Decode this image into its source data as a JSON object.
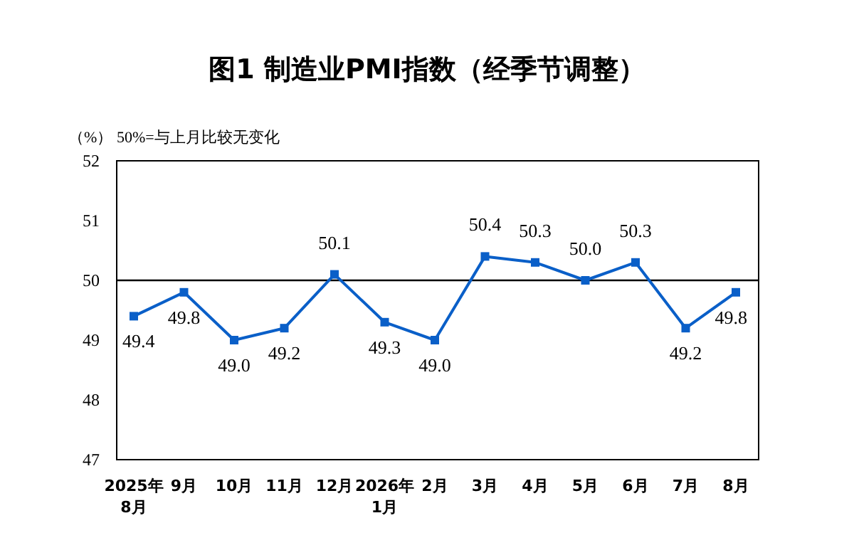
{
  "chart_data": {
    "type": "line",
    "title": "图1 制造业PMI指数（经季节调整）",
    "ylabel": "（%）",
    "annotations": [
      "50%=与上月比较无变化"
    ],
    "categories": [
      "2025年\n8月",
      "9月",
      "10月",
      "11月",
      "12月",
      "2026年\n1月",
      "2月",
      "3月",
      "4月",
      "5月",
      "6月",
      "7月",
      "8月"
    ],
    "series": [
      {
        "color": "#0a5fc8",
        "values": [
          49.4,
          49.8,
          49.0,
          49.2,
          50.1,
          49.3,
          49.0,
          50.4,
          50.3,
          50.0,
          50.3,
          49.2,
          49.8
        ]
      }
    ],
    "value_labels": [
      "49.4",
      "49.8",
      "49.0",
      "49.2",
      "50.1",
      "49.3",
      "49.0",
      "50.4",
      "50.3",
      "50.0",
      "50.3",
      "49.2",
      "49.8"
    ],
    "ylim": [
      47,
      52
    ],
    "yticks": [
      47,
      48,
      49,
      50,
      51,
      52
    ],
    "marker": "square",
    "ref_lines": [
      {
        "axis": "y",
        "value": 50,
        "color": "#000000"
      }
    ]
  }
}
